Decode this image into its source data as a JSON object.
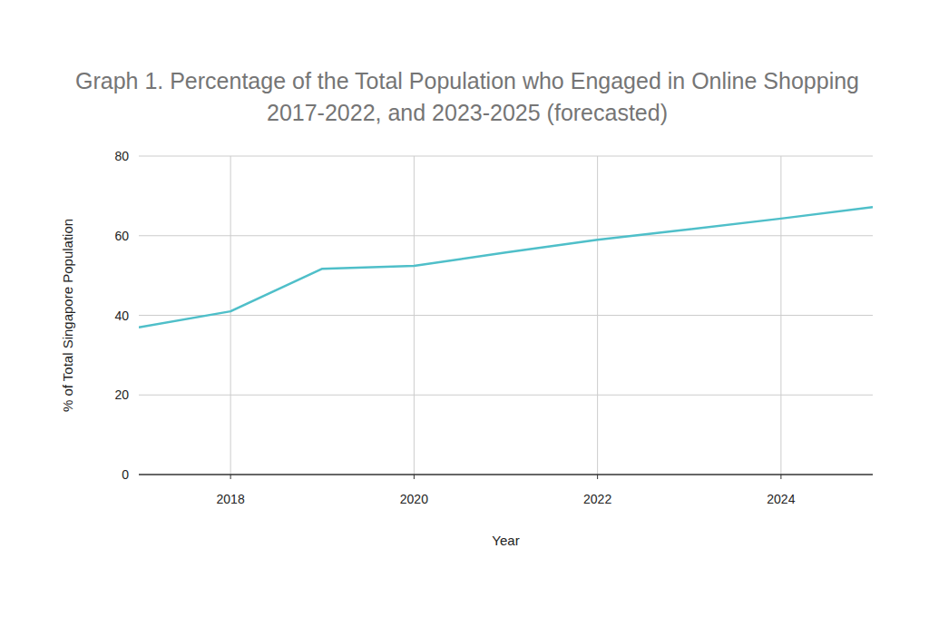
{
  "chart_data": {
    "type": "line",
    "title": "Graph 1. Percentage of the Total Population who Engaged in Online Shopping 2017-2022, and 2023-2025 (forecasted)",
    "x_label": "Year",
    "y_label": "% of Total Singapore Population",
    "x": [
      2017,
      2018,
      2019,
      2020,
      2021,
      2022,
      2023,
      2024,
      2025
    ],
    "values": [
      37,
      41,
      51.7,
      52.4,
      55.8,
      59,
      61.6,
      64.3,
      67.2
    ],
    "color": "#4fbfc9",
    "xlim": [
      2017,
      2025
    ],
    "xticks": [
      2018,
      2020,
      2022,
      2024
    ],
    "ylim": [
      0,
      80
    ],
    "yticks": [
      0,
      20,
      40,
      60,
      80
    ],
    "grid": true
  }
}
